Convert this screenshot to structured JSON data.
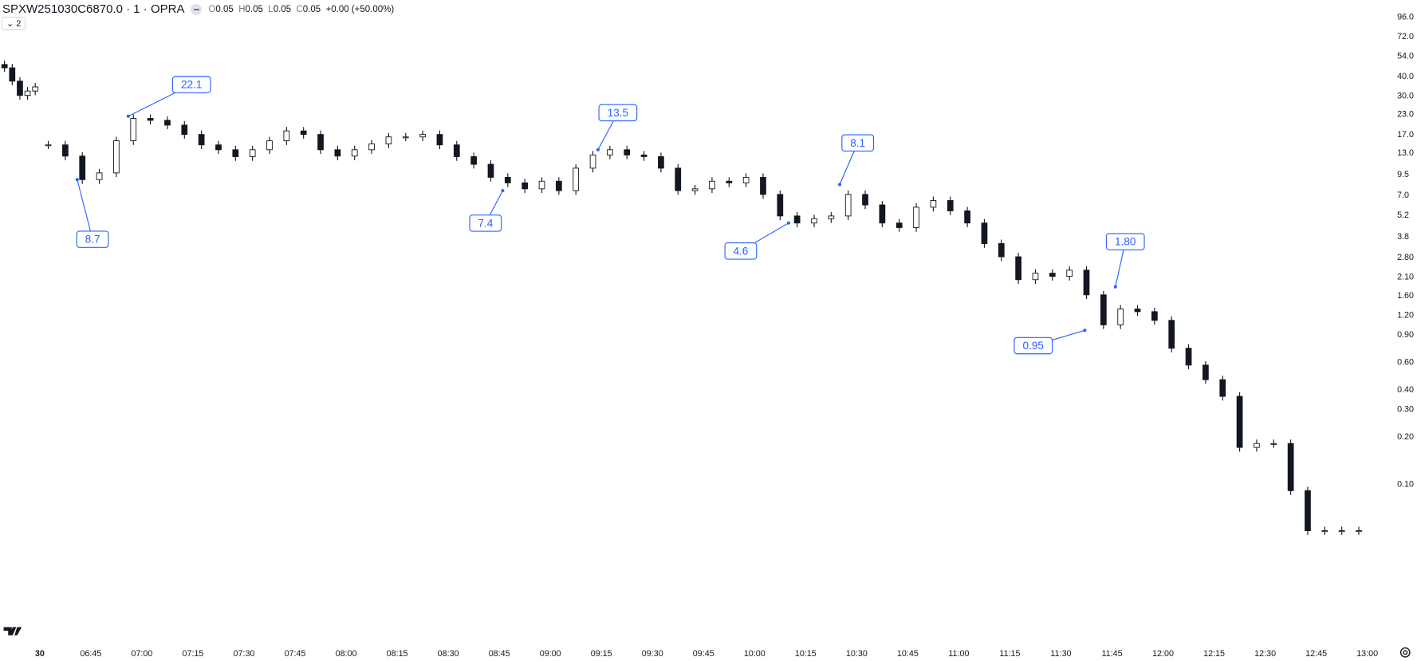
{
  "header": {
    "symbol": "SPXW251030C6870.0 · 1 · OPRA",
    "o_label": "O",
    "o": "0.05",
    "h_label": "H",
    "h": "0.05",
    "l_label": "L",
    "l": "0.05",
    "c_label": "C",
    "c": "0.05",
    "change": "+0.00 (+50.00%)",
    "collapse_label": "2",
    "status_icon": "minus-circle-icon"
  },
  "colors": {
    "candle": "#131722",
    "annotation": "#2962ff",
    "axis_text": "#131722"
  },
  "chart_data": {
    "type": "candlestick",
    "scale": "log",
    "interval": "1",
    "ylim": [
      0.02,
      96
    ],
    "y_ticks": [
      "96.0",
      "72.0",
      "54.0",
      "40.0",
      "30.0",
      "23.0",
      "17.0",
      "13.0",
      "9.5",
      "7.0",
      "5.2",
      "3.8",
      "2.80",
      "2.10",
      "1.60",
      "1.20",
      "0.90",
      "0.60",
      "0.40",
      "0.30",
      "0.20",
      "0.10"
    ],
    "x_ticks": [
      "30",
      "06:45",
      "07:00",
      "07:15",
      "07:30",
      "07:45",
      "08:00",
      "08:15",
      "08:30",
      "08:45",
      "09:00",
      "09:15",
      "09:30",
      "09:45",
      "10:00",
      "10:15",
      "10:30",
      "10:45",
      "11:00",
      "11:15",
      "11:30",
      "11:45",
      "12:00",
      "12:15",
      "12:30",
      "12:45",
      "13:00"
    ],
    "prior_closes": [
      45,
      37,
      30,
      32,
      34
    ],
    "start_time": "06:30",
    "step_minutes": 5,
    "closes": [
      14.5,
      12.3,
      8.7,
      9.6,
      15.4,
      21.4,
      20.8,
      19.4,
      16.9,
      14.5,
      13.5,
      12.2,
      13.5,
      15.4,
      17.8,
      16.9,
      13.5,
      12.3,
      13.5,
      14.7,
      16.3,
      16.3,
      16.9,
      14.5,
      12.2,
      10.9,
      9.0,
      8.3,
      7.6,
      8.5,
      7.4,
      10.3,
      12.5,
      13.5,
      12.5,
      12.2,
      10.3,
      7.4,
      7.6,
      8.5,
      8.3,
      9.0,
      7.0,
      5.1,
      4.6,
      4.9,
      5.1,
      7.0,
      6.0,
      4.6,
      4.3,
      5.8,
      6.4,
      5.5,
      4.6,
      3.4,
      2.8,
      2.0,
      2.2,
      2.1,
      2.3,
      1.6,
      1.03,
      1.3,
      1.25,
      1.1,
      0.73,
      0.57,
      0.46,
      0.36,
      0.17,
      0.18,
      0.18,
      0.09,
      0.05,
      0.05,
      0.05,
      0.05
    ],
    "annotations": [
      {
        "label": "22.1",
        "time": "06:56",
        "value": 22.1
      },
      {
        "label": "8.7",
        "time": "06:41",
        "value": 8.7
      },
      {
        "label": "13.5",
        "time": "09:14",
        "value": 13.5
      },
      {
        "label": "7.4",
        "time": "08:46",
        "value": 7.4
      },
      {
        "label": "8.1",
        "time": "10:25",
        "value": 8.1
      },
      {
        "label": "4.6",
        "time": "10:10",
        "value": 4.6
      },
      {
        "label": "1.80",
        "time": "11:46",
        "value": 1.8
      },
      {
        "label": "0.95",
        "time": "11:37",
        "value": 0.95
      }
    ]
  }
}
